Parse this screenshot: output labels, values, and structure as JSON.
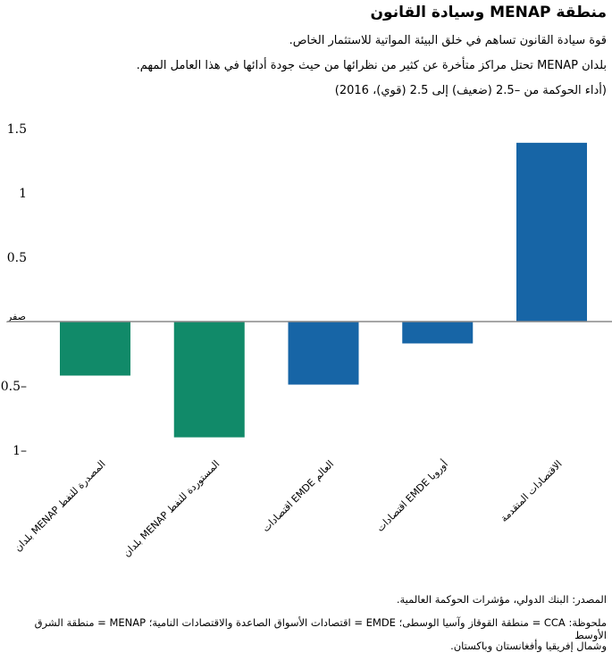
{
  "title": "منطقة MENAP وسيادة القانون",
  "subtitles": [
    "قوة سيادة القانون تساهم في خلق البيئة المواتية للاستثمار الخاص.",
    "بلدان MENAP تحتل مراكز متأخرة عن كثير من نظرائها من حيث جودة أدائها في هذا العامل المهم.",
    "(أداء الحوكمة من –2.5 (ضعيف) إلى 2.5 (قوي)، 2016)"
  ],
  "chart_data": {
    "type": "bar",
    "categories": [
      "بلدان MENAP المصدرة للنفط",
      "بلدان MENAP المستوردة للنفط",
      "اقتصادات EMDE العالم",
      "اقتصادات EMDE أوروبا",
      "الاقتصادات المتقدمة"
    ],
    "values": [
      -0.42,
      -0.9,
      -0.49,
      -0.17,
      1.39
    ],
    "colors": [
      "#118a69",
      "#118a69",
      "#1765a6",
      "#1765a6",
      "#1765a6"
    ],
    "ylim": [
      -1,
      1.5
    ],
    "yticks": [
      1.5,
      1,
      0.5,
      0,
      -0.5,
      -1
    ],
    "ytick_labels": [
      "1.5",
      "1",
      "0.5",
      "صفر",
      "0.5–",
      "1–"
    ],
    "grid": false
  },
  "footnotes": [
    "المصدر: البنك الدولي، مؤشرات الحوكمة العالمية.",
    "ملحوظة: CCA = منطقة القوقاز وآسيا الوسطى؛ EMDE = اقتصادات الأسواق الصاعدة والاقتصادات النامية؛ MENAP = منطقة الشرق الأوسط",
    "وشمال إفريقيا وأفغانستان وباكستان."
  ]
}
